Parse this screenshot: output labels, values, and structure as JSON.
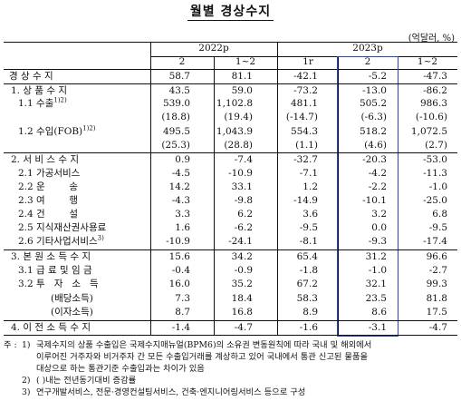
{
  "title": "월별 경상수지",
  "unit": "(억달러, %)",
  "header": {
    "year_2022": "2022p",
    "year_2023": "2023p",
    "months_2022": [
      "2",
      "1~2"
    ],
    "months_2023": [
      "1r",
      "2",
      "1~2"
    ]
  },
  "rows": [
    {
      "label": "경 상 수 지",
      "values": [
        "58.7",
        "81.1",
        "-42.1",
        "-5.2",
        "-47.3"
      ]
    },
    {
      "label": "1. 상 품 수 지",
      "values": [
        "43.5",
        "59.0",
        "-73.2",
        "-13.0",
        "-86.2"
      ]
    },
    {
      "label": "1.1 수출",
      "sup": "1)2)",
      "values": [
        "539.0",
        "1,102.8",
        "481.1",
        "505.2",
        "986.3"
      ]
    },
    {
      "label": "",
      "values": [
        "(18.8)",
        "(19.4)",
        "(-14.7)",
        "(-6.3)",
        "(-10.6)"
      ]
    },
    {
      "label": "1.2 수입(FOB)",
      "sup": "1)2)",
      "values": [
        "495.5",
        "1,043.9",
        "554.3",
        "518.2",
        "1,072.5"
      ]
    },
    {
      "label": "",
      "values": [
        "(25.3)",
        "(28.8)",
        "(1.1)",
        "(4.6)",
        "(2.7)"
      ]
    },
    {
      "label": "2. 서 비 스 수 지",
      "values": [
        "0.9",
        "-7.4",
        "-32.7",
        "-20.3",
        "-53.0"
      ]
    },
    {
      "label": "2.1 가공서비스",
      "values": [
        "-4.5",
        "-10.9",
        "-7.1",
        "-4.2",
        "-11.3"
      ]
    },
    {
      "label": "2.2 운        송",
      "values": [
        "14.2",
        "33.1",
        "1.2",
        "-2.2",
        "-1.0"
      ]
    },
    {
      "label": "2.3 여        행",
      "values": [
        "-4.3",
        "-9.8",
        "-14.9",
        "-10.1",
        "-25.0"
      ]
    },
    {
      "label": "2.4 건        설",
      "values": [
        "3.3",
        "6.2",
        "3.6",
        "3.2",
        "6.8"
      ]
    },
    {
      "label": "2.5 지식재산권사용료",
      "values": [
        "1.6",
        "-6.2",
        "-9.5",
        "0.0",
        "-9.5"
      ]
    },
    {
      "label": "2.6 기타사업서비스",
      "sup": "3)",
      "values": [
        "-10.9",
        "-24.1",
        "-8.1",
        "-9.3",
        "-17.4"
      ]
    },
    {
      "label": "3. 본 원 소 득 수 지",
      "values": [
        "15.6",
        "34.2",
        "65.4",
        "31.2",
        "96.6"
      ]
    },
    {
      "label": "3.1 급 료 및 임 금",
      "values": [
        "-0.4",
        "-0.9",
        "-1.8",
        "-1.0",
        "-2.7"
      ]
    },
    {
      "label": "3.2 투   자   소   득",
      "values": [
        "16.0",
        "35.2",
        "67.2",
        "32.1",
        "99.3"
      ]
    },
    {
      "label": "(배당소득)",
      "values": [
        "7.3",
        "18.4",
        "58.3",
        "23.5",
        "81.8"
      ]
    },
    {
      "label": "(이자소득)",
      "values": [
        "8.7",
        "16.8",
        "8.9",
        "8.6",
        "17.5"
      ]
    },
    {
      "label": "4. 이 전 소 득 수 지",
      "values": [
        "-1.4",
        "-4.7",
        "-1.6",
        "-3.1",
        "-4.7"
      ]
    }
  ],
  "notes": {
    "prefix": "주 :",
    "n1_num": "1)",
    "n1_line1": "국제수지의 상품 수출입은 국제수지매뉴얼(BPM6)의 소유권 변동원칙에 따라 국내 및 해외에서",
    "n1_line2": "이루어진 거주자와 비거주자 간 모든 수출입거래를 계상하고 있어 국내에서 통관 신고된 물품을",
    "n1_line3": "대상으로 하는 통관기준 수출입과는 차이가 있음",
    "n2_num": "2)",
    "n2_text": "( )내는 전년동기대비 증감률",
    "n3_num": "3)",
    "n3_text": "연구개발서비스, 전문·경영컨설팅서비스, 건축·엔지니어링서비스 등으로 구성"
  }
}
